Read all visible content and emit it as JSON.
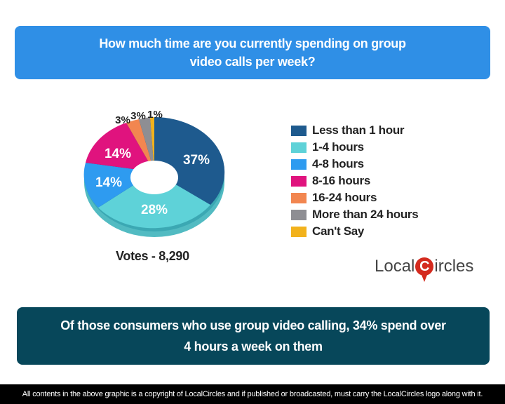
{
  "question": {
    "line1": "How much time are you currently spending on group",
    "line2": "video calls per week?"
  },
  "votes_label": "Votes - 8,290",
  "legend": [
    {
      "label": "Less than 1 hour",
      "color": "#1e5a8e"
    },
    {
      "label": "1-4 hours",
      "color": "#5ed2d8"
    },
    {
      "label": "4-8 hours",
      "color": "#2e9bf0"
    },
    {
      "label": "8-16 hours",
      "color": "#e0137e"
    },
    {
      "label": "16-24 hours",
      "color": "#f28650"
    },
    {
      "label": "More than 24 hours",
      "color": "#8e8e93"
    },
    {
      "label": "Can't Say",
      "color": "#f2b21c"
    }
  ],
  "slice_labels": {
    "less1": "37%",
    "h1_4": "28%",
    "h4_8": "14%",
    "h8_16": "14%",
    "h16_24": "3%",
    "more24": "3%",
    "cant": "1%"
  },
  "logo": {
    "pre": "Local",
    "c": "C",
    "post": "ircles"
  },
  "insight": {
    "line1": "Of those consumers who use group video calling, 34% spend over",
    "line2": "4 hours a week on them"
  },
  "footer": "All contents in the above graphic is a copyright of LocalCircles and if published or broadcasted, must carry the LocalCircles logo along with it.",
  "chart_data": {
    "type": "pie",
    "title": "How much time are you currently spending on group video calls per week?",
    "categories": [
      "Less than 1 hour",
      "1-4 hours",
      "4-8 hours",
      "8-16 hours",
      "16-24 hours",
      "More than 24 hours",
      "Can't Say"
    ],
    "values": [
      37,
      28,
      14,
      14,
      3,
      3,
      1
    ],
    "unit": "%",
    "donut": true,
    "legend_position": "right",
    "annotation": "Votes - 8,290"
  }
}
